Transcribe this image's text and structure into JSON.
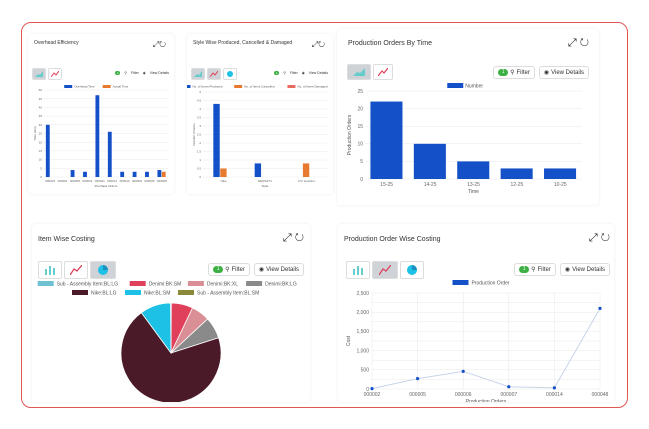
{
  "panels": {
    "overhead": {
      "title": "Overhead Efficiency",
      "filter_label": "Filter",
      "details_label": "View Details",
      "filter_count": "1",
      "chart_data": {
        "type": "bar",
        "legend": [
          "Overhead Time",
          "Actual Time"
        ],
        "categories": [
          "000023",
          "000001",
          "000005",
          "000024",
          "000021",
          "000011",
          "000010",
          "000009",
          "000006",
          "000008"
        ],
        "series": [
          {
            "name": "Overhead Time",
            "values": [
              30,
              0,
              4,
              3,
              47,
              26,
              3,
              3,
              3,
              4
            ]
          },
          {
            "name": "Actual Time",
            "values": [
              0,
              0,
              0,
              0,
              0,
              0,
              0,
              0,
              0,
              3
            ]
          }
        ],
        "ylim": [
          0,
          50
        ],
        "yticks": [
          0,
          5,
          10,
          15,
          20,
          25,
          30,
          35,
          40,
          45,
          50
        ],
        "xlabel": "Purchase Orders",
        "ylabel": "Time (min)"
      }
    },
    "style_wise": {
      "title": "Style Wise Produced, Cancelled & Damaged",
      "filter_label": "Filter",
      "details_label": "View Details",
      "filter_count": "1",
      "chart_data": {
        "type": "bar",
        "legend": [
          "No. of Items Produced",
          "No. of Items Cancelled",
          "No. of Items Damaged"
        ],
        "categories": [
          "Nike",
          "DENIM/T1",
          "LTC Holsters"
        ],
        "series": [
          {
            "name": "No. of Items Produced",
            "values": [
              4.3,
              0.8,
              0
            ]
          },
          {
            "name": "No. of Items Cancelled",
            "values": [
              0.5,
              0,
              0.8
            ]
          },
          {
            "name": "No. of Items Damaged",
            "values": [
              0,
              0,
              0
            ]
          }
        ],
        "ylim": [
          0,
          5
        ],
        "yticks": [
          0,
          0.5,
          1,
          1.5,
          2,
          2.5,
          3,
          3.5,
          4,
          4.5,
          5
        ],
        "xlabel": "Style",
        "ylabel": "Number of Items"
      }
    },
    "production_time": {
      "title": "Production Orders By Time",
      "filter_label": "Filter",
      "details_label": "View Details",
      "filter_count": "1",
      "chart_data": {
        "type": "bar",
        "legend": [
          "Number"
        ],
        "categories": [
          "15-25",
          "14-25",
          "13-25",
          "12-25",
          "10-25"
        ],
        "series": [
          {
            "name": "Number",
            "values": [
              22,
              10,
              5,
              3,
              3
            ]
          }
        ],
        "ylim": [
          0,
          25
        ],
        "yticks": [
          0,
          5,
          10,
          15,
          20,
          25
        ],
        "xlabel": "Time",
        "ylabel": "Production Orders"
      }
    },
    "item_costing": {
      "title": "Item Wise Costing",
      "filter_label": "Filter",
      "details_label": "View Details",
      "filter_count": "1",
      "chart_data": {
        "type": "pie",
        "legend": [
          "Sub - Assembly Item:BL:LG",
          "Denimi:BK:SM",
          "Denimi:BK:XL",
          "Denimi:BK:LG",
          "Nike:BL:LG",
          "Nike:BL:SM",
          "Sub - Assembly Item:BL:SM"
        ],
        "slices": [
          {
            "label": "Sub - Assembly Item:BL:LG",
            "value": 0.1,
            "color": "#6ec1d1"
          },
          {
            "label": "Denimi:BK:SM",
            "value": 7,
            "color": "#e0405a"
          },
          {
            "label": "Denimi:BK:XL",
            "value": 6,
            "color": "#d98f95"
          },
          {
            "label": "Denimi:BK:LG",
            "value": 7,
            "color": "#8a8a8a"
          },
          {
            "label": "Nike:BL:LG",
            "value": 70,
            "color": "#4a1a28"
          },
          {
            "label": "Nike:BL:SM",
            "value": 10,
            "color": "#1ec1e6"
          },
          {
            "label": "Sub - Assembly Item:BL:SM",
            "value": 0.1,
            "color": "#8a8a3a"
          }
        ]
      }
    },
    "po_costing": {
      "title": "Production Order Wise Costing",
      "filter_label": "Filter",
      "details_label": "View Details",
      "filter_count": "1",
      "chart_data": {
        "type": "line",
        "legend": [
          "Production Order"
        ],
        "categories": [
          "000002",
          "000005",
          "000006",
          "000007",
          "000014",
          "000048"
        ],
        "series": [
          {
            "name": "Production Order",
            "values": [
              10,
              270,
              460,
              60,
              30,
              2100
            ]
          }
        ],
        "ylim": [
          0,
          2500
        ],
        "yticks": [
          0,
          250,
          500,
          750,
          1000,
          1250,
          1500,
          1750,
          2000,
          2250,
          2500
        ],
        "ytick_labels": [
          "0",
          "250",
          "500",
          "750",
          "1,000",
          "1,250",
          "1,500",
          "1,750",
          "2,000",
          "2,250",
          "2,500"
        ],
        "xlabel": "Production Orders",
        "ylabel": "Cost"
      }
    }
  },
  "colors": {
    "bar_blue": "#1450c8",
    "bar_orange": "#e87a30",
    "bar_red": "#e86a60",
    "grid": "#e8e8e8",
    "badge_green": "#3cb043"
  },
  "icons": {
    "expand": "⤢",
    "refresh": "↻",
    "filter": "⚲",
    "eye": "◉"
  }
}
